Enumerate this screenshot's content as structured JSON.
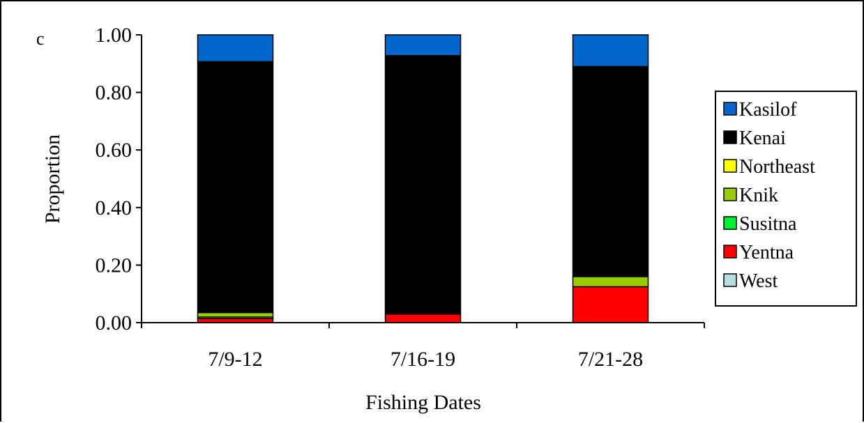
{
  "chart_data": {
    "type": "bar",
    "stacked": true,
    "panel_label": "c",
    "xlabel": "Fishing Dates",
    "ylabel": "Proportion",
    "ylim": [
      0,
      1
    ],
    "yticks": [
      "0.00",
      "0.20",
      "0.40",
      "0.60",
      "0.80",
      "1.00"
    ],
    "grid": false,
    "legend_position": "right",
    "categories": [
      "7/9-12",
      "7/16-19",
      "7/21-28"
    ],
    "series": [
      {
        "name": "West",
        "color": "#b7dde0",
        "values": [
          0.0,
          0.0,
          0.0
        ]
      },
      {
        "name": "Yentna",
        "color": "#ff0000",
        "values": [
          0.015,
          0.03,
          0.125
        ]
      },
      {
        "name": "Susitna",
        "color": "#00ee33",
        "values": [
          0.005,
          0.0,
          0.0
        ]
      },
      {
        "name": "Knik",
        "color": "#99cc00",
        "values": [
          0.015,
          0.0,
          0.035
        ]
      },
      {
        "name": "Northeast",
        "color": "#ffff00",
        "values": [
          0.0,
          0.0,
          0.0
        ]
      },
      {
        "name": "Kenai",
        "color": "#000000",
        "values": [
          0.872,
          0.898,
          0.73
        ]
      },
      {
        "name": "Kasilof",
        "color": "#0066cc",
        "values": [
          0.093,
          0.072,
          0.11
        ]
      }
    ],
    "legend_order": [
      "Kasilof",
      "Kenai",
      "Northeast",
      "Knik",
      "Susitna",
      "Yentna",
      "West"
    ]
  }
}
